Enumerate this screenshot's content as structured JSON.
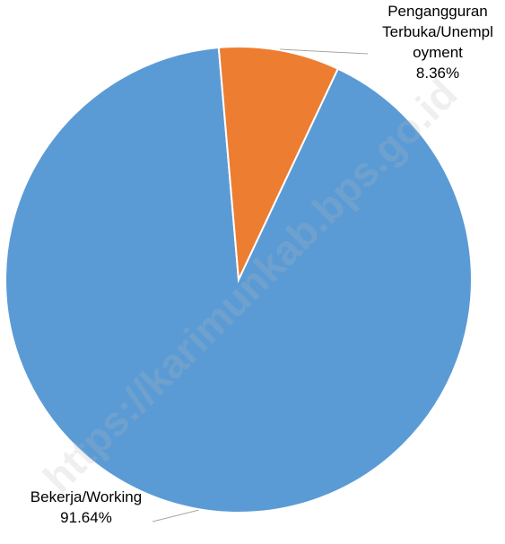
{
  "chart_data": {
    "type": "pie",
    "categories": [
      "Bekerja/Working",
      "Pengangguran Terbuka/Unemployment"
    ],
    "values": [
      91.64,
      8.36
    ],
    "value_labels": [
      "91.64%",
      "8.36%"
    ],
    "colors": [
      "#5b9bd5",
      "#ed7d31"
    ],
    "watermark": "https://karimunkab.bps.go.id"
  }
}
